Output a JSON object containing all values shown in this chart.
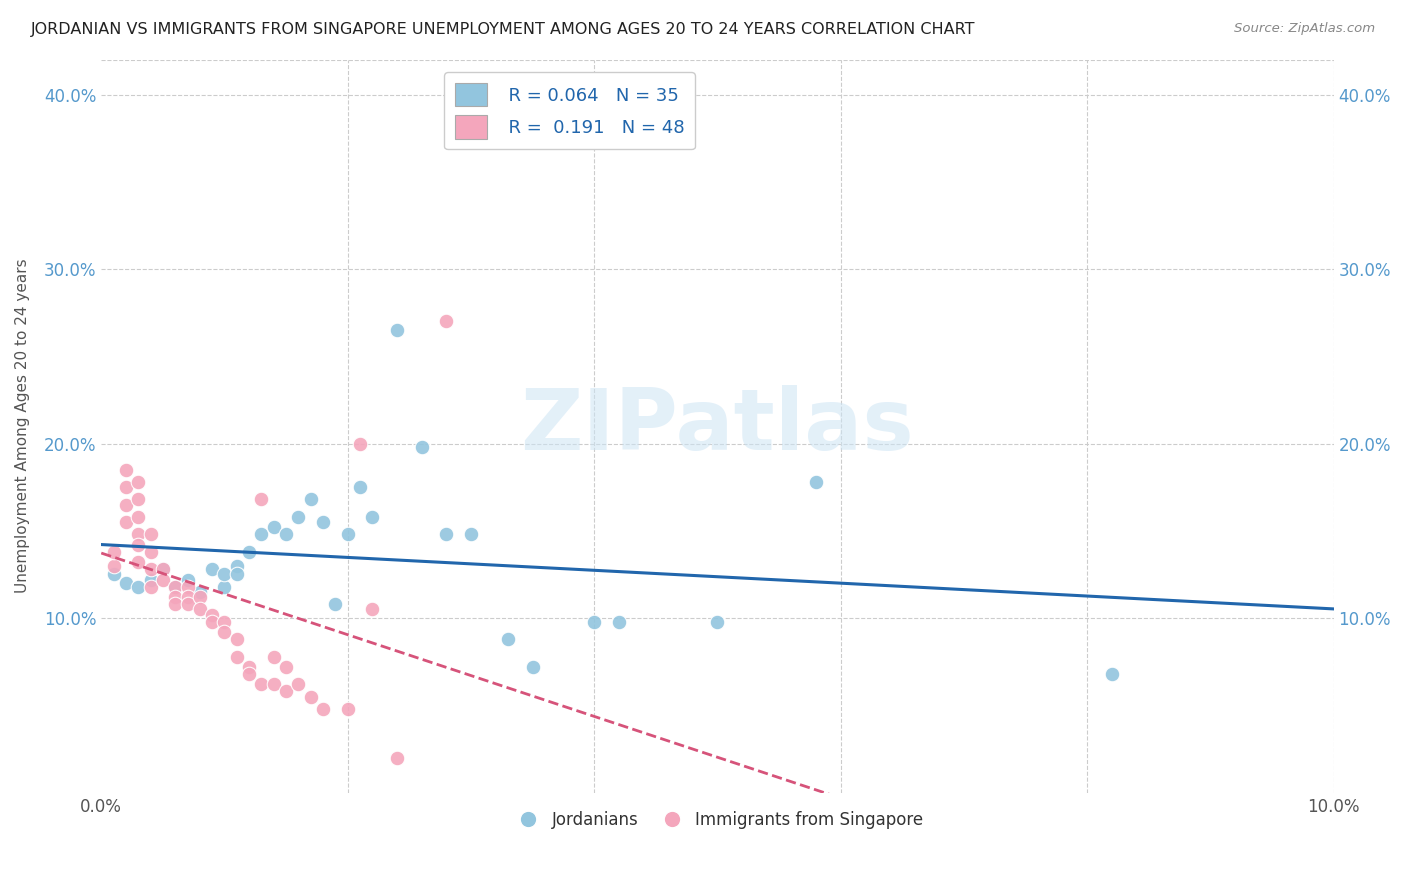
{
  "title": "JORDANIAN VS IMMIGRANTS FROM SINGAPORE UNEMPLOYMENT AMONG AGES 20 TO 24 YEARS CORRELATION CHART",
  "source": "Source: ZipAtlas.com",
  "ylabel": "Unemployment Among Ages 20 to 24 years",
  "xlim": [
    0.0,
    0.1
  ],
  "ylim": [
    0.0,
    0.42
  ],
  "xtick_pos": [
    0.0,
    0.02,
    0.04,
    0.06,
    0.08,
    0.1
  ],
  "xtick_labels": [
    "0.0%",
    "",
    "",
    "",
    "",
    "10.0%"
  ],
  "ytick_pos": [
    0.0,
    0.1,
    0.2,
    0.3,
    0.4
  ],
  "ytick_labels": [
    "",
    "10.0%",
    "20.0%",
    "30.0%",
    "40.0%"
  ],
  "watermark": "ZIPatlas",
  "legend_r_blue": "R = 0.064",
  "legend_n_blue": "N = 35",
  "legend_r_pink": "R =  0.191",
  "legend_n_pink": "N = 48",
  "blue_color": "#92c5de",
  "pink_color": "#f4a6bc",
  "blue_line_color": "#2166ac",
  "pink_line_color": "#d6537a",
  "tick_color": "#5599cc",
  "grid_color": "#cccccc",
  "title_color": "#222222",
  "blue_scatter": [
    [
      0.001,
      0.125
    ],
    [
      0.002,
      0.12
    ],
    [
      0.003,
      0.118
    ],
    [
      0.004,
      0.122
    ],
    [
      0.005,
      0.128
    ],
    [
      0.006,
      0.118
    ],
    [
      0.007,
      0.122
    ],
    [
      0.008,
      0.115
    ],
    [
      0.009,
      0.128
    ],
    [
      0.01,
      0.118
    ],
    [
      0.01,
      0.125
    ],
    [
      0.011,
      0.13
    ],
    [
      0.011,
      0.125
    ],
    [
      0.012,
      0.138
    ],
    [
      0.013,
      0.148
    ],
    [
      0.014,
      0.152
    ],
    [
      0.015,
      0.148
    ],
    [
      0.016,
      0.158
    ],
    [
      0.017,
      0.168
    ],
    [
      0.018,
      0.155
    ],
    [
      0.019,
      0.108
    ],
    [
      0.02,
      0.148
    ],
    [
      0.021,
      0.175
    ],
    [
      0.022,
      0.158
    ],
    [
      0.024,
      0.265
    ],
    [
      0.026,
      0.198
    ],
    [
      0.028,
      0.148
    ],
    [
      0.03,
      0.148
    ],
    [
      0.033,
      0.088
    ],
    [
      0.035,
      0.072
    ],
    [
      0.04,
      0.098
    ],
    [
      0.042,
      0.098
    ],
    [
      0.05,
      0.098
    ],
    [
      0.058,
      0.178
    ],
    [
      0.082,
      0.068
    ]
  ],
  "pink_scatter": [
    [
      0.001,
      0.13
    ],
    [
      0.001,
      0.138
    ],
    [
      0.002,
      0.155
    ],
    [
      0.002,
      0.165
    ],
    [
      0.002,
      0.175
    ],
    [
      0.002,
      0.185
    ],
    [
      0.003,
      0.178
    ],
    [
      0.003,
      0.168
    ],
    [
      0.003,
      0.158
    ],
    [
      0.003,
      0.148
    ],
    [
      0.003,
      0.142
    ],
    [
      0.003,
      0.132
    ],
    [
      0.004,
      0.148
    ],
    [
      0.004,
      0.138
    ],
    [
      0.004,
      0.128
    ],
    [
      0.004,
      0.118
    ],
    [
      0.005,
      0.128
    ],
    [
      0.005,
      0.122
    ],
    [
      0.006,
      0.118
    ],
    [
      0.006,
      0.112
    ],
    [
      0.006,
      0.108
    ],
    [
      0.007,
      0.118
    ],
    [
      0.007,
      0.112
    ],
    [
      0.007,
      0.108
    ],
    [
      0.008,
      0.112
    ],
    [
      0.008,
      0.105
    ],
    [
      0.009,
      0.102
    ],
    [
      0.009,
      0.098
    ],
    [
      0.01,
      0.098
    ],
    [
      0.01,
      0.092
    ],
    [
      0.011,
      0.088
    ],
    [
      0.011,
      0.078
    ],
    [
      0.012,
      0.072
    ],
    [
      0.012,
      0.068
    ],
    [
      0.013,
      0.168
    ],
    [
      0.013,
      0.062
    ],
    [
      0.014,
      0.078
    ],
    [
      0.014,
      0.062
    ],
    [
      0.015,
      0.072
    ],
    [
      0.015,
      0.058
    ],
    [
      0.016,
      0.062
    ],
    [
      0.017,
      0.055
    ],
    [
      0.018,
      0.048
    ],
    [
      0.02,
      0.048
    ],
    [
      0.021,
      0.2
    ],
    [
      0.022,
      0.105
    ],
    [
      0.024,
      0.02
    ],
    [
      0.028,
      0.27
    ]
  ]
}
